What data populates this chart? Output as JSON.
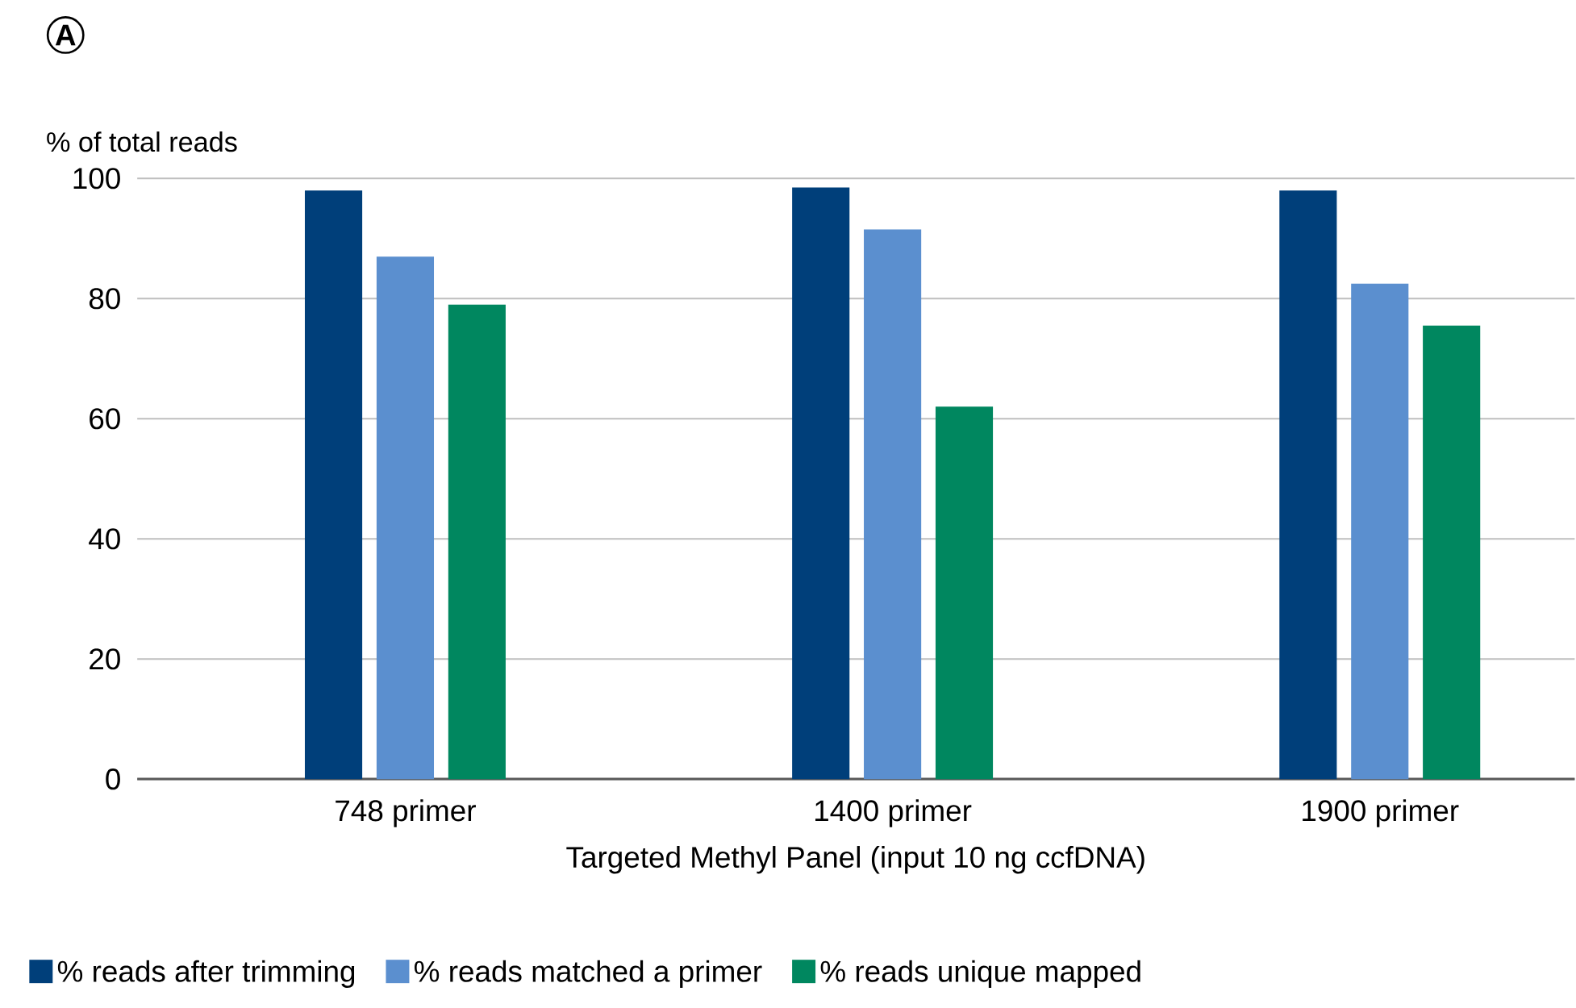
{
  "chart_data": {
    "type": "bar",
    "ylabel": "% of total reads",
    "xlabel": "Targeted Methyl Panel (input 10 ng ccfDNA)",
    "annotations": [
      "A"
    ],
    "categories": [
      "748 primer",
      "1400 primer",
      "1900 primer"
    ],
    "series": [
      {
        "name": "% reads after trimming",
        "color": "#003f7a",
        "values": [
          98,
          98.5,
          98
        ]
      },
      {
        "name": "% reads matched a primer",
        "color": "#5b8fcf",
        "values": [
          87,
          91.5,
          82.5
        ]
      },
      {
        "name": "% reads unique mapped",
        "color": "#00875f",
        "values": [
          79,
          62,
          75.5
        ]
      }
    ],
    "ylim": [
      0,
      100
    ],
    "yticks": [
      0,
      20,
      40,
      60,
      80,
      100
    ],
    "grid": "y",
    "legend": "bottom left"
  }
}
